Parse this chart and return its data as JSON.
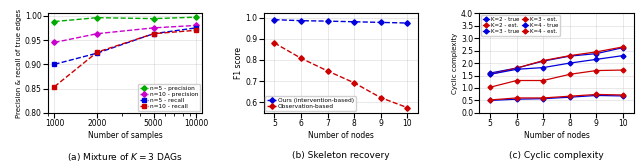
{
  "plot1": {
    "x": [
      1000,
      2000,
      5000,
      10000
    ],
    "n5_precision": [
      0.988,
      0.996,
      0.994,
      0.997
    ],
    "n10_precision": [
      0.945,
      0.963,
      0.975,
      0.98
    ],
    "n5_recall": [
      0.9,
      0.923,
      0.963,
      0.975
    ],
    "n10_recall": [
      0.854,
      0.925,
      0.963,
      0.97
    ],
    "xlabel": "Number of samples",
    "ylabel": "Precision & recall of true edges",
    "caption": "(a) Mixture of $K = 3$ DAGs",
    "ylim": [
      0.8,
      1.005
    ],
    "yticks": [
      0.8,
      0.85,
      0.9,
      0.95,
      1.0
    ],
    "legend": [
      "n=5 - precision",
      "n=10 - precision",
      "n=5 - recall",
      "n=10 - recall"
    ],
    "colors": [
      "#00aa00",
      "#cc00cc",
      "#0000dd",
      "#cc0000"
    ]
  },
  "plot2": {
    "x": [
      5,
      6,
      7,
      8,
      9,
      10
    ],
    "ours": [
      0.99,
      0.985,
      0.983,
      0.98,
      0.977,
      0.974
    ],
    "obs": [
      0.88,
      0.808,
      0.748,
      0.692,
      0.622,
      0.575
    ],
    "xlabel": "Number of nodes",
    "ylabel": "F1 score",
    "caption": "(b) Skeleton recovery",
    "ylim": [
      0.55,
      1.02
    ],
    "yticks": [
      0.6,
      0.7,
      0.8,
      0.9,
      1.0
    ],
    "legend": [
      "Ours (intervention-based)",
      "Observation-based"
    ],
    "colors": [
      "#0000dd",
      "#cc0000"
    ]
  },
  "plot3": {
    "x": [
      5,
      6,
      7,
      8,
      9,
      10
    ],
    "k2_true": [
      0.5,
      0.55,
      0.57,
      0.63,
      0.7,
      0.68
    ],
    "k2_est": [
      0.52,
      0.6,
      0.6,
      0.67,
      0.74,
      0.72
    ],
    "k3_true": [
      1.6,
      1.8,
      2.08,
      2.28,
      2.38,
      2.62
    ],
    "k3_est": [
      1.55,
      1.8,
      2.1,
      2.3,
      2.45,
      2.65
    ],
    "k4_true": [
      1.55,
      1.75,
      1.82,
      2.0,
      2.15,
      2.3
    ],
    "k4_est": [
      1.03,
      1.3,
      1.3,
      1.55,
      1.7,
      1.72
    ],
    "xlabel": "Number of nodes",
    "ylabel": "Cyclic complexity",
    "caption": "(c) Cyclic complexity",
    "ylim": [
      0.0,
      4.0
    ],
    "yticks": [
      0.0,
      0.5,
      1.0,
      1.5,
      2.0,
      2.5,
      3.0,
      3.5,
      4.0
    ],
    "blue": "#0000dd",
    "red": "#cc0000"
  }
}
